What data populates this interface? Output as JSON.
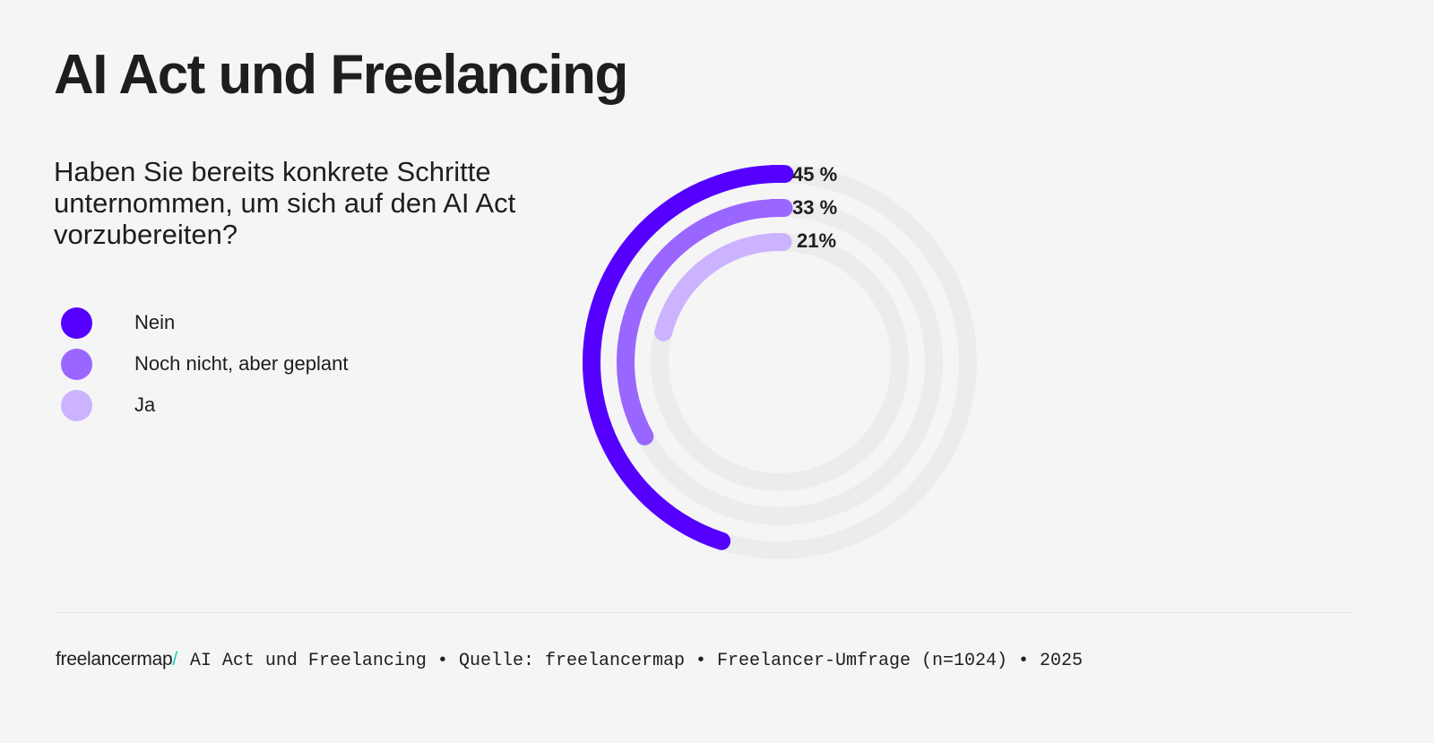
{
  "chart_data": {
    "type": "radial-bar",
    "title": "AI Act und Freelancing",
    "subtitle": "Haben Sie bereits konkrete Schritte unternommen, um sich auf den AI Act vorzubereiten?",
    "categories": [
      "Nein",
      "Noch nicht, aber geplant",
      "Ja"
    ],
    "values": [
      45,
      33,
      21
    ],
    "value_labels": [
      "45 %",
      "33 %",
      "21%"
    ],
    "unit": "%",
    "range": [
      0,
      100
    ],
    "colors": [
      "#5500ff",
      "#9966ff",
      "#ccb3ff"
    ],
    "track_color": "#ececec",
    "legend_placement": "left",
    "grid": false
  },
  "footer": {
    "logo_text": "freelancermap",
    "logo_slash": "/",
    "logo_accent": "#14d6b4",
    "source": "AI Act und Freelancing • Quelle: freelancermap • Freelancer-Umfrage (n=1024) • 2025"
  }
}
